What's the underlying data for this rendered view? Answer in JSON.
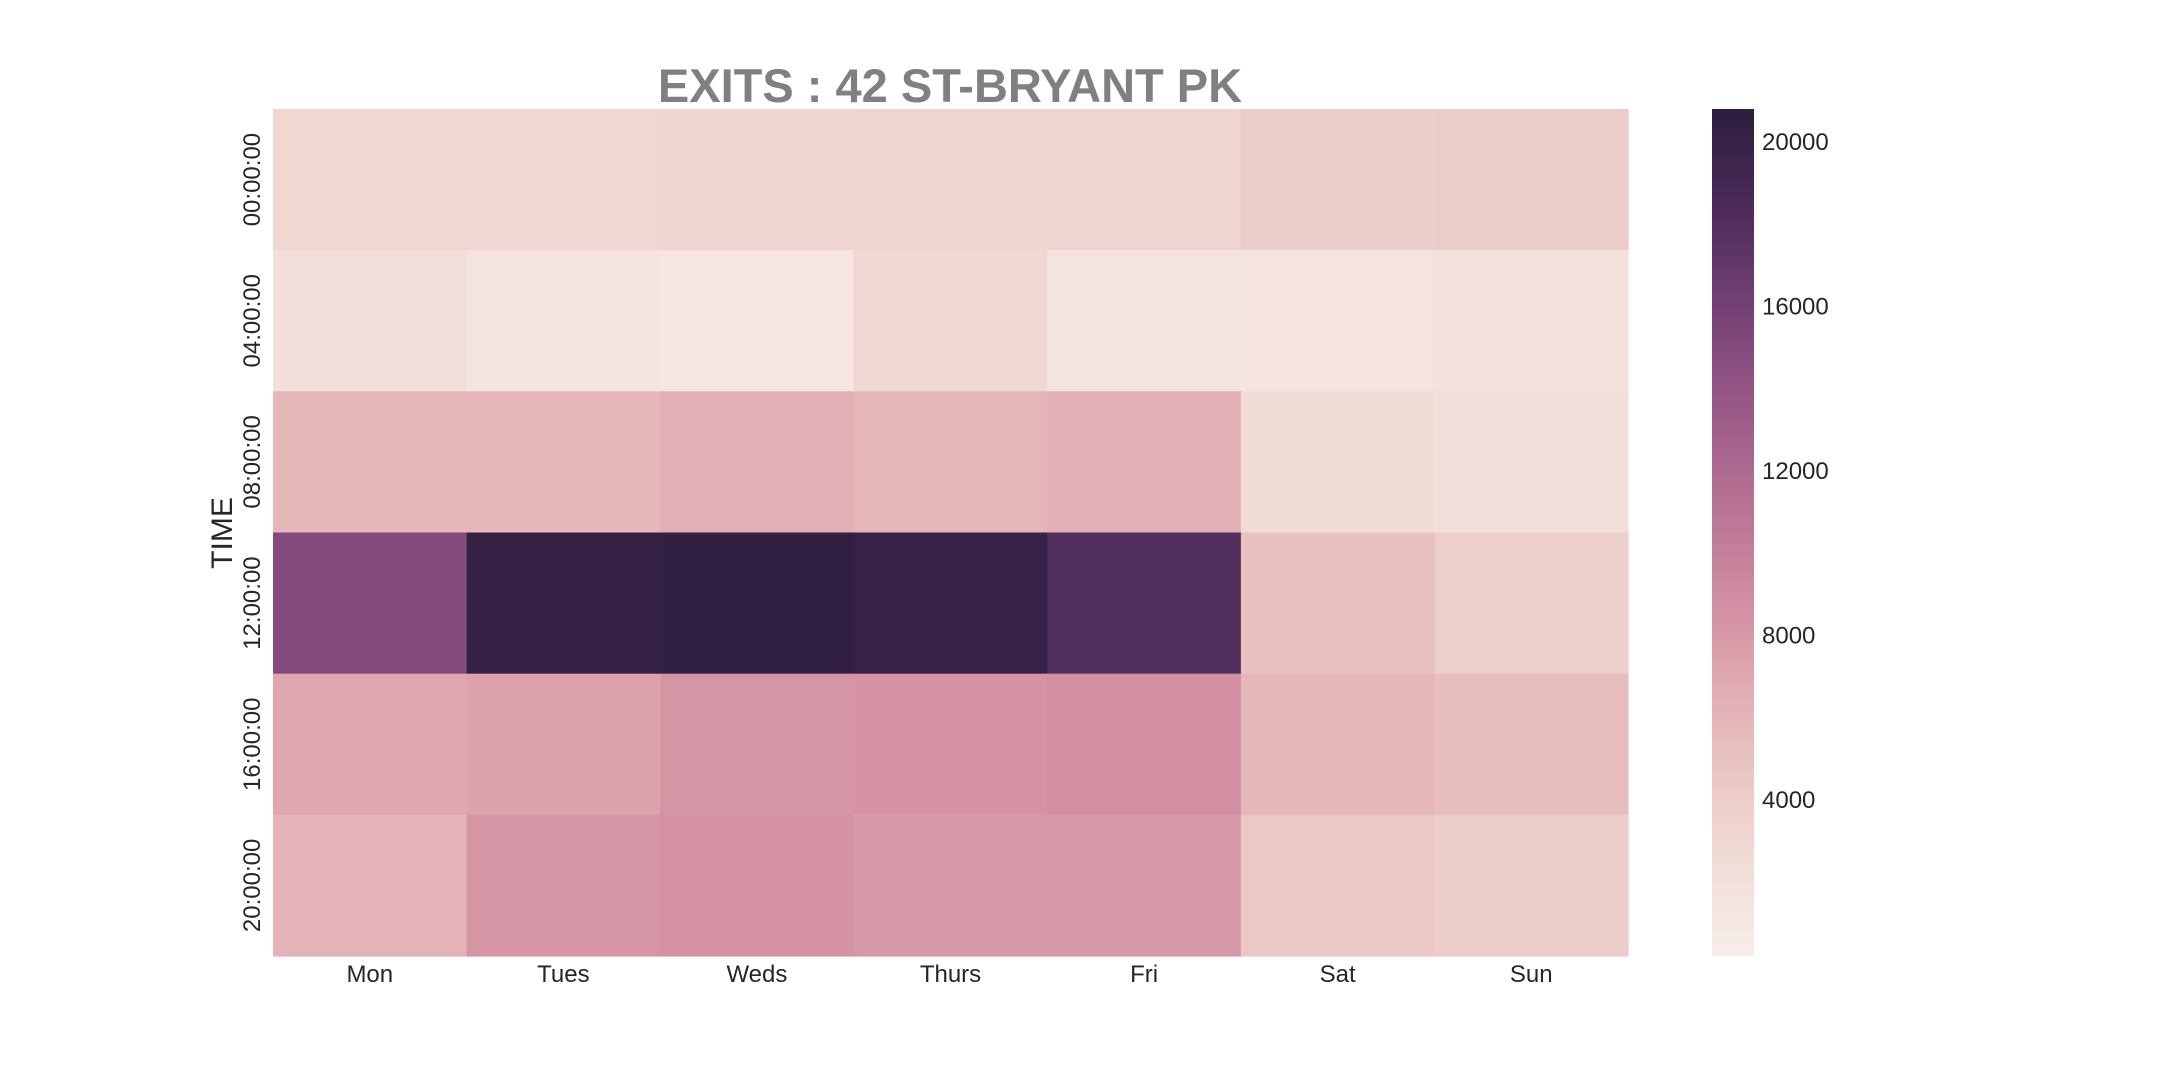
{
  "chart_data": {
    "type": "heatmap",
    "title": "EXITS : 42 ST-BRYANT PK",
    "xlabel": "",
    "ylabel": "TIME",
    "x_categories": [
      "Mon",
      "Tues",
      "Weds",
      "Thurs",
      "Fri",
      "Sat",
      "Sun"
    ],
    "y_categories": [
      "00:00:00",
      "04:00:00",
      "08:00:00",
      "12:00:00",
      "16:00:00",
      "20:00:00"
    ],
    "values": [
      [
        3000,
        3000,
        3100,
        3200,
        3200,
        4000,
        4100
      ],
      [
        2100,
        1300,
        1200,
        3000,
        1500,
        1600,
        1800
      ],
      [
        5800,
        5800,
        6400,
        5900,
        6400,
        2500,
        2100
      ],
      [
        15000,
        20200,
        20400,
        20000,
        18200,
        5000,
        3800
      ],
      [
        7000,
        7300,
        8300,
        8400,
        8700,
        5800,
        5300
      ],
      [
        6100,
        8300,
        8400,
        8000,
        8100,
        4500,
        4000
      ]
    ],
    "colorbar": {
      "min": 200,
      "max": 20800,
      "ticks": [
        4000,
        8000,
        12000,
        16000,
        20000
      ],
      "tick_labels": [
        "4000",
        "8000",
        "12000",
        "16000",
        "20000"
      ]
    },
    "colors": {
      "low": "#f7eeea",
      "high": "#2c1e3d",
      "title": "#808080",
      "text": "#262626"
    }
  }
}
